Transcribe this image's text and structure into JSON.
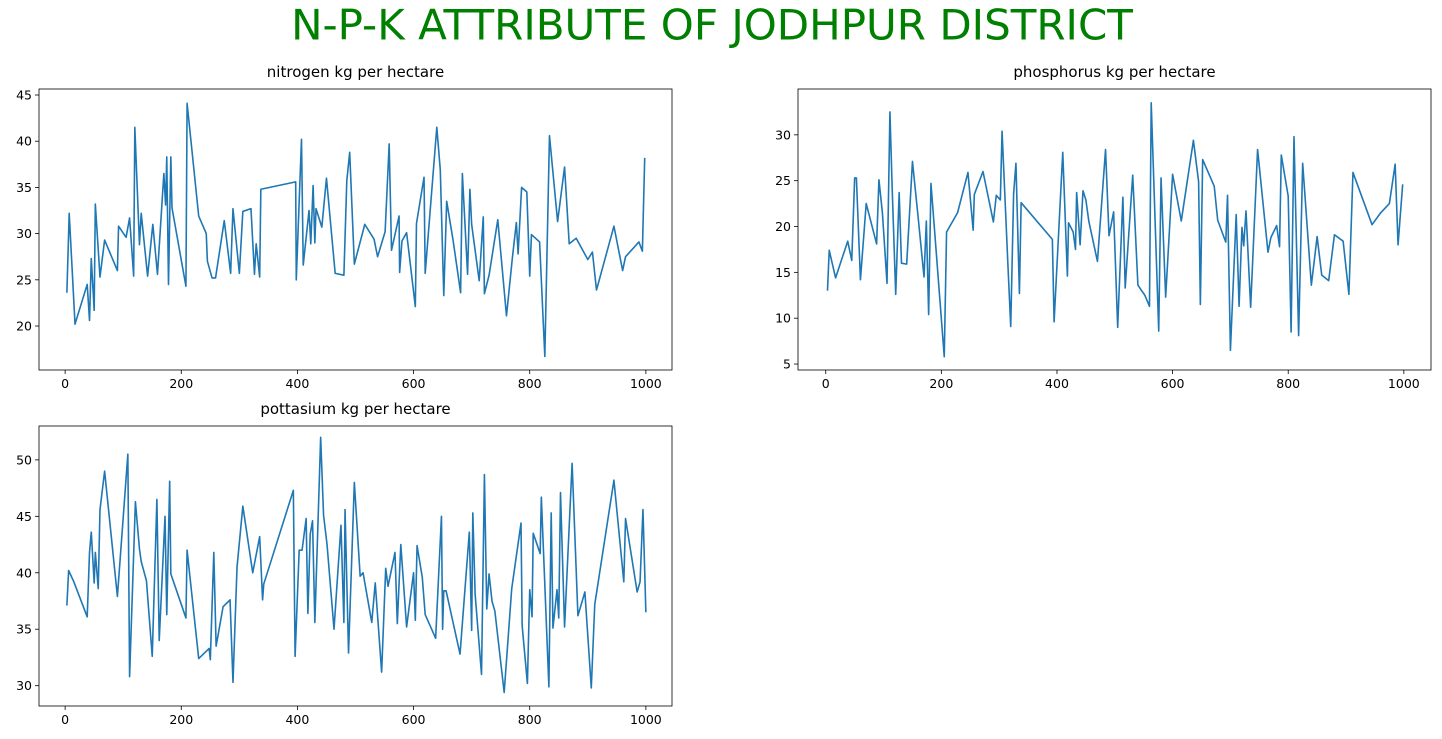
{
  "title": "N-P-K ATTRIBUTE OF JODHPUR DISTRICT",
  "title_color": "#008000",
  "chart_data": [
    {
      "type": "line",
      "title": "nitrogen kg per hectare",
      "color": "#1f77b4",
      "x": [
        3,
        7,
        17,
        38,
        42,
        45,
        50,
        52,
        60,
        68,
        90,
        92,
        105,
        111,
        118,
        120,
        128,
        131,
        142,
        151,
        159,
        170,
        173,
        175,
        178,
        182,
        184,
        208,
        210,
        230,
        243,
        245,
        253,
        259,
        274,
        285,
        289,
        300,
        306,
        320,
        326,
        329,
        335,
        337,
        397,
        398,
        407,
        410,
        420,
        423,
        427,
        430,
        432,
        442,
        450,
        465,
        480,
        485,
        490,
        498,
        516,
        532,
        538,
        551,
        558,
        562,
        575,
        576,
        580,
        588,
        603,
        605,
        618,
        620,
        640,
        646,
        652,
        657,
        668,
        681,
        684,
        693,
        697,
        700,
        713,
        720,
        722,
        730,
        745,
        760,
        770,
        777,
        780,
        786,
        795,
        800,
        803,
        817,
        826,
        834,
        848,
        860,
        868,
        880,
        900,
        908,
        915,
        945,
        960,
        965,
        988,
        994,
        998
      ],
      "values": [
        23.6,
        32.2,
        20.2,
        24.5,
        20.6,
        27.3,
        21.7,
        33.2,
        25.3,
        29.3,
        26,
        30.8,
        29.6,
        31.7,
        25.4,
        41.5,
        28.8,
        32.2,
        25.4,
        31,
        25.6,
        36.5,
        33.1,
        38.3,
        24.5,
        38.3,
        32.8,
        24.3,
        44.1,
        31.9,
        30,
        27,
        25.2,
        25.2,
        31.4,
        25.7,
        32.7,
        25.7,
        32.4,
        32.7,
        25.6,
        28.9,
        25.3,
        34.8,
        35.6,
        25,
        40.2,
        26.6,
        32.5,
        28.9,
        35.2,
        29,
        32.7,
        30.7,
        36,
        25.7,
        25.5,
        35.7,
        38.8,
        26.7,
        31,
        29.4,
        27.5,
        30.2,
        39.7,
        28.2,
        31.9,
        25.8,
        29.2,
        30.1,
        22.1,
        31.1,
        36.1,
        25.7,
        41.5,
        36.9,
        23.3,
        33.5,
        29.3,
        23.6,
        36.5,
        25.6,
        34.8,
        31,
        24.9,
        31.8,
        23.5,
        25.5,
        31.5,
        21.1,
        27.3,
        31.2,
        27.8,
        35,
        34.5,
        25.4,
        29.9,
        29.1,
        16.7,
        40.6,
        31.3,
        37.2,
        28.9,
        29.5,
        27.2,
        28,
        23.9,
        30.8,
        26,
        27.5,
        29.1,
        28.1,
        38.2
      ],
      "xlim": [
        -45,
        1045
      ],
      "ylim": [
        15.24,
        45.65
      ],
      "xticks": [
        0,
        200,
        400,
        600,
        800,
        1000
      ],
      "yticks": [
        20,
        25,
        30,
        35,
        40,
        45
      ]
    },
    {
      "type": "line",
      "title": "phosphorus kg per hectare",
      "color": "#1f77b4",
      "x": [
        3,
        6,
        17,
        38,
        45,
        50,
        53,
        60,
        70,
        88,
        92,
        98,
        106,
        111,
        115,
        121,
        127,
        131,
        140,
        150,
        160,
        170,
        174,
        178,
        182,
        205,
        209,
        228,
        246,
        255,
        257,
        272,
        290,
        295,
        302,
        305,
        315,
        320,
        325,
        329,
        335,
        338,
        392,
        395,
        410,
        418,
        420,
        428,
        432,
        434,
        440,
        445,
        450,
        455,
        470,
        484,
        490,
        498,
        505,
        514,
        518,
        531,
        540,
        552,
        560,
        563,
        576,
        580,
        588,
        600,
        615,
        636,
        645,
        648,
        652,
        672,
        678,
        692,
        695,
        700,
        710,
        715,
        720,
        723,
        727,
        735,
        747,
        765,
        770,
        780,
        785,
        788,
        800,
        805,
        810,
        818,
        825,
        840,
        850,
        858,
        870,
        880,
        895,
        905,
        912,
        945,
        960,
        975,
        985,
        990,
        998
      ],
      "values": [
        13,
        17.4,
        14.4,
        18.4,
        16.3,
        25.3,
        25.3,
        14.2,
        22.5,
        18.1,
        25.1,
        21.5,
        13.8,
        32.5,
        24,
        12.6,
        23.7,
        16,
        15.9,
        27.1,
        20.9,
        14.5,
        20.6,
        10.4,
        24.7,
        5.8,
        19.4,
        21.5,
        25.9,
        19.6,
        23.5,
        26,
        20.5,
        23.4,
        22.9,
        30.4,
        16,
        9.1,
        23.6,
        26.9,
        12.7,
        22.6,
        18.6,
        9.6,
        28.1,
        14.6,
        20.4,
        19.4,
        17.5,
        23.7,
        18,
        23.9,
        22.9,
        20.6,
        16.2,
        28.4,
        19,
        21.6,
        9,
        23.2,
        13.3,
        25.6,
        13.6,
        12.5,
        11.3,
        33.5,
        8.6,
        25.3,
        12.3,
        25.7,
        20.6,
        29.4,
        24.9,
        11.5,
        27.3,
        24.4,
        20.7,
        18.3,
        23.4,
        6.5,
        21.3,
        11.3,
        19.9,
        17.9,
        21.7,
        11.2,
        28.4,
        17.2,
        18.8,
        20.1,
        17.8,
        27.8,
        23.3,
        8.5,
        29.8,
        8.1,
        26.9,
        13.6,
        18.9,
        14.7,
        14.1,
        19.1,
        18.4,
        12.6,
        25.9,
        20.2,
        21.5,
        22.5,
        26.8,
        18,
        24.6
      ],
      "xlim": [
        -48,
        1047
      ],
      "ylim": [
        4.35,
        35.0
      ],
      "xticks": [
        0,
        200,
        400,
        600,
        800,
        1000
      ],
      "yticks": [
        5,
        10,
        15,
        20,
        25,
        30
      ]
    },
    {
      "type": "line",
      "title": "pottasium kg per hectare",
      "color": "#1f77b4",
      "x": [
        3,
        6,
        15,
        38,
        42,
        45,
        50,
        52,
        57,
        60,
        68,
        90,
        108,
        111,
        121,
        128,
        131,
        140,
        150,
        158,
        162,
        172,
        175,
        180,
        182,
        208,
        210,
        230,
        248,
        250,
        256,
        260,
        272,
        284,
        289,
        296,
        306,
        323,
        335,
        340,
        342,
        393,
        396,
        403,
        408,
        415,
        418,
        422,
        426,
        430,
        440,
        445,
        451,
        463,
        475,
        480,
        482,
        488,
        498,
        508,
        513,
        528,
        534,
        545,
        552,
        556,
        568,
        572,
        578,
        588,
        600,
        603,
        606,
        615,
        620,
        638,
        648,
        650,
        652,
        656,
        680,
        696,
        700,
        702,
        706,
        717,
        722,
        726,
        730,
        735,
        740,
        756,
        769,
        785,
        787,
        796,
        800,
        804,
        806,
        818,
        820,
        833,
        837,
        840,
        847,
        850,
        853,
        860,
        873,
        883,
        895,
        906,
        912,
        945,
        962,
        965,
        985,
        990,
        995,
        1000
      ],
      "values": [
        37.1,
        40.2,
        39.2,
        36.1,
        41.8,
        43.6,
        39.1,
        41.8,
        38.6,
        45.6,
        49,
        37.9,
        50.5,
        30.8,
        46.3,
        42.1,
        41,
        39.3,
        32.6,
        46.5,
        34,
        45,
        36.3,
        48.1,
        39.9,
        36,
        42,
        32.4,
        33.3,
        32.3,
        41.8,
        33.5,
        37,
        37.6,
        30.3,
        40.5,
        45.9,
        40,
        43.2,
        37.6,
        39,
        47.3,
        32.6,
        42,
        42,
        44.8,
        36.4,
        43.4,
        44.6,
        35.6,
        52,
        45.1,
        42.5,
        35,
        44.2,
        35.6,
        45.6,
        32.9,
        48,
        39.7,
        40,
        35.6,
        39.1,
        31.2,
        40.4,
        38.8,
        41.8,
        35.5,
        42.5,
        35.2,
        40,
        35.8,
        42.4,
        39.6,
        36.3,
        34.2,
        45,
        35,
        38.4,
        38.4,
        32.8,
        43.6,
        34.9,
        45.3,
        38.1,
        31,
        48.7,
        36.8,
        39.9,
        37.5,
        36.6,
        29.4,
        38.6,
        44.4,
        35.3,
        30.2,
        38.5,
        36.1,
        43.5,
        41.7,
        46.7,
        29.9,
        45.3,
        35.1,
        38.5,
        36,
        47.1,
        35.2,
        49.7,
        36.2,
        38.3,
        29.8,
        37.2,
        48.2,
        39.2,
        44.8,
        38.3,
        39.2,
        45.6,
        36.5
      ],
      "xlim": [
        -45,
        1045
      ],
      "ylim": [
        28.2,
        53.0
      ],
      "xticks": [
        0,
        200,
        400,
        600,
        800,
        1000
      ],
      "yticks": [
        30,
        35,
        40,
        45,
        50
      ]
    }
  ]
}
